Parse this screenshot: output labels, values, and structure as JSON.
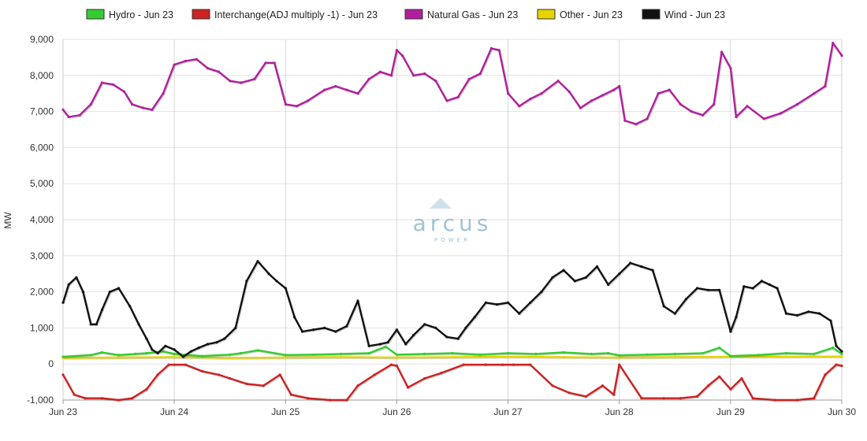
{
  "chart_data": {
    "type": "line",
    "ylabel": "MW",
    "ylim": [
      -1000,
      9000
    ],
    "y_ticks": [
      "9,000",
      "8,000",
      "7,000",
      "6,000",
      "5,000",
      "4,000",
      "3,000",
      "2,000",
      "1,000",
      "0",
      "-1,000"
    ],
    "x_ticks": [
      "Jun 23",
      "Jun 24",
      "Jun 25",
      "Jun 26",
      "Jun 27",
      "Jun 28",
      "Jun 29",
      "Jun 30"
    ],
    "x_unit": "days after Jun 23",
    "grid": true,
    "legend_position": "top",
    "watermark": {
      "brand": "arcus",
      "sub": "POWER"
    },
    "series": [
      {
        "name": "Hydro - Jun 23",
        "color": "#33cc33",
        "x": [
          0,
          0.25,
          0.35,
          0.5,
          0.65,
          0.75,
          0.9,
          1.0,
          1.25,
          1.5,
          1.6,
          1.75,
          2.0,
          2.25,
          2.5,
          2.75,
          2.9,
          3.0,
          3.25,
          3.5,
          3.75,
          4.0,
          4.25,
          4.5,
          4.75,
          4.9,
          5.0,
          5.25,
          5.5,
          5.75,
          5.9,
          6.0,
          6.25,
          6.5,
          6.75,
          6.92,
          7.0
        ],
        "values": [
          200,
          250,
          320,
          250,
          280,
          300,
          350,
          280,
          220,
          260,
          300,
          380,
          250,
          260,
          280,
          300,
          480,
          260,
          280,
          300,
          260,
          300,
          280,
          320,
          280,
          300,
          240,
          260,
          280,
          300,
          450,
          220,
          250,
          300,
          280,
          450,
          280
        ]
      },
      {
        "name": "Interchange(ADJ multiply -1) - Jun 23",
        "color": "#cc2222",
        "x": [
          0,
          0.1,
          0.2,
          0.35,
          0.5,
          0.62,
          0.75,
          0.85,
          0.95,
          1.0,
          1.1,
          1.25,
          1.4,
          1.5,
          1.65,
          1.8,
          1.95,
          2.05,
          2.2,
          2.4,
          2.55,
          2.65,
          2.8,
          2.95,
          3.0,
          3.1,
          3.25,
          3.4,
          3.6,
          3.8,
          3.95,
          4.05,
          4.2,
          4.4,
          4.55,
          4.7,
          4.85,
          4.95,
          5.0,
          5.2,
          5.4,
          5.55,
          5.7,
          5.8,
          5.9,
          6.0,
          6.1,
          6.2,
          6.4,
          6.6,
          6.75,
          6.85,
          6.95,
          7.0
        ],
        "values": [
          -300,
          -850,
          -950,
          -950,
          -1000,
          -950,
          -700,
          -300,
          -20,
          -20,
          -20,
          -200,
          -300,
          -400,
          -550,
          -600,
          -300,
          -850,
          -950,
          -1000,
          -1000,
          -600,
          -300,
          -20,
          -50,
          -650,
          -400,
          -250,
          -20,
          -20,
          -20,
          -20,
          -20,
          -600,
          -800,
          -900,
          -600,
          -850,
          -20,
          -950,
          -950,
          -950,
          -900,
          -600,
          -350,
          -700,
          -400,
          -950,
          -1000,
          -1000,
          -950,
          -300,
          -20,
          -50
        ]
      },
      {
        "name": "Natural Gas - Jun 23",
        "color": "#b0209c",
        "x": [
          0,
          0.05,
          0.15,
          0.25,
          0.35,
          0.45,
          0.55,
          0.62,
          0.72,
          0.8,
          0.9,
          1.0,
          1.1,
          1.2,
          1.3,
          1.4,
          1.5,
          1.6,
          1.72,
          1.82,
          1.9,
          2.0,
          2.1,
          2.2,
          2.35,
          2.45,
          2.55,
          2.65,
          2.75,
          2.85,
          2.95,
          3.0,
          3.05,
          3.15,
          3.25,
          3.35,
          3.45,
          3.55,
          3.65,
          3.75,
          3.85,
          3.92,
          4.0,
          4.1,
          4.2,
          4.3,
          4.45,
          4.55,
          4.65,
          4.75,
          4.85,
          4.95,
          5.0,
          5.05,
          5.15,
          5.25,
          5.35,
          5.45,
          5.55,
          5.65,
          5.75,
          5.85,
          5.92,
          6.0,
          6.05,
          6.15,
          6.3,
          6.45,
          6.6,
          6.75,
          6.85,
          6.92,
          7.0
        ],
        "values": [
          7050,
          6850,
          6900,
          7200,
          7800,
          7750,
          7550,
          7200,
          7100,
          7050,
          7500,
          8300,
          8400,
          8450,
          8200,
          8100,
          7850,
          7800,
          7900,
          8350,
          8350,
          7200,
          7150,
          7300,
          7600,
          7700,
          7600,
          7500,
          7900,
          8100,
          8000,
          8700,
          8550,
          8000,
          8050,
          7850,
          7300,
          7400,
          7900,
          8050,
          8750,
          8700,
          7500,
          7150,
          7350,
          7500,
          7850,
          7550,
          7100,
          7300,
          7450,
          7600,
          7700,
          6750,
          6650,
          6800,
          7500,
          7600,
          7200,
          7000,
          6900,
          7200,
          8650,
          8200,
          6850,
          7150,
          6800,
          6950,
          7200,
          7500,
          7700,
          8900,
          8550
        ]
      },
      {
        "name": "Other - Jun 23",
        "color": "#e6d400",
        "x": [
          0,
          0.5,
          1.0,
          1.5,
          2.0,
          2.5,
          3.0,
          3.5,
          4.0,
          4.5,
          5.0,
          5.5,
          6.0,
          6.5,
          7.0
        ],
        "values": [
          170,
          180,
          190,
          170,
          180,
          190,
          180,
          190,
          200,
          190,
          180,
          190,
          200,
          200,
          210
        ]
      },
      {
        "name": "Wind - Jun 23",
        "color": "#111111",
        "x": [
          0,
          0.05,
          0.12,
          0.18,
          0.25,
          0.3,
          0.35,
          0.42,
          0.5,
          0.6,
          0.68,
          0.75,
          0.8,
          0.85,
          0.92,
          1.0,
          1.08,
          1.15,
          1.22,
          1.3,
          1.38,
          1.45,
          1.55,
          1.65,
          1.75,
          1.85,
          1.92,
          2.0,
          2.08,
          2.15,
          2.25,
          2.35,
          2.45,
          2.55,
          2.65,
          2.75,
          2.85,
          2.92,
          3.0,
          3.08,
          3.15,
          3.25,
          3.35,
          3.45,
          3.55,
          3.62,
          3.7,
          3.8,
          3.9,
          4.0,
          4.1,
          4.2,
          4.3,
          4.4,
          4.5,
          4.6,
          4.7,
          4.8,
          4.9,
          5.0,
          5.1,
          5.2,
          5.3,
          5.4,
          5.5,
          5.6,
          5.7,
          5.8,
          5.9,
          6.0,
          6.05,
          6.12,
          6.2,
          6.28,
          6.35,
          6.42,
          6.5,
          6.6,
          6.7,
          6.8,
          6.9,
          6.95,
          7.0
        ],
        "values": [
          1700,
          2200,
          2400,
          2000,
          1100,
          1100,
          1500,
          2000,
          2100,
          1600,
          1100,
          700,
          400,
          300,
          500,
          400,
          200,
          350,
          450,
          550,
          600,
          700,
          1000,
          2300,
          2850,
          2500,
          2300,
          2100,
          1300,
          900,
          950,
          1000,
          900,
          1050,
          1750,
          500,
          550,
          600,
          950,
          550,
          800,
          1100,
          1000,
          750,
          700,
          1000,
          1300,
          1700,
          1650,
          1700,
          1400,
          1700,
          2000,
          2400,
          2600,
          2300,
          2400,
          2700,
          2200,
          2500,
          2800,
          2700,
          2600,
          1600,
          1400,
          1800,
          2100,
          2050,
          2050,
          900,
          1300,
          2150,
          2100,
          2300,
          2200,
          2100,
          1400,
          1350,
          1450,
          1400,
          1200,
          500,
          350
        ]
      }
    ]
  }
}
